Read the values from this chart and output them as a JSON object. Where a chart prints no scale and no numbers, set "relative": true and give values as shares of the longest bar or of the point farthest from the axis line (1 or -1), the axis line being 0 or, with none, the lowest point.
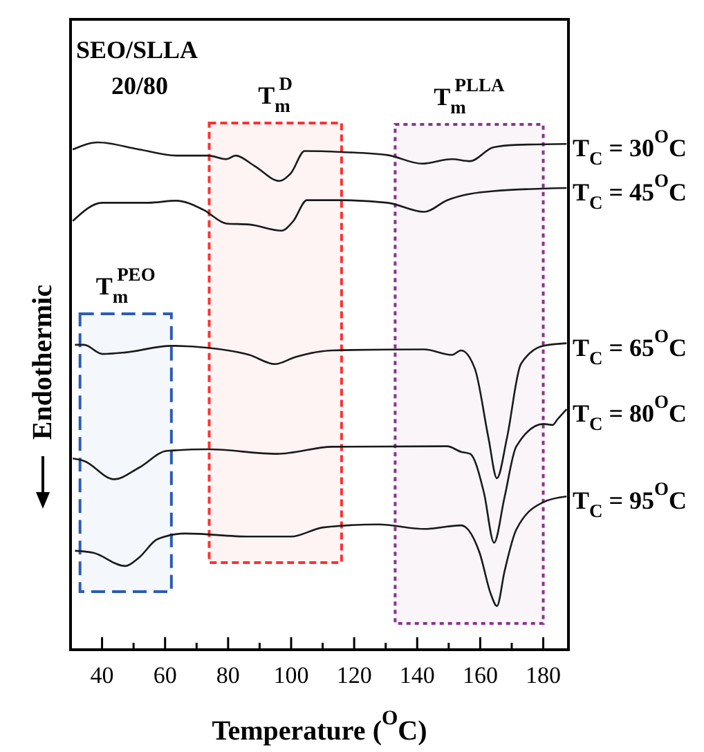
{
  "chart_data": {
    "type": "line",
    "relative": true,
    "xlabel": "Temperature ($^{O}$C)",
    "ylabel": "Endothermic",
    "xlim": [
      30,
      188
    ],
    "xticks": [
      40,
      {
        "value": 50,
        "label": null
      },
      60,
      {
        "value": 70,
        "label": null
      },
      80,
      {
        "value": 90,
        "label": null
      },
      100,
      {
        "value": 110,
        "label": null
      },
      120,
      {
        "value": 130,
        "label": null
      },
      140,
      {
        "value": 150,
        "label": null
      },
      160,
      {
        "value": 170,
        "label": null
      },
      180
    ],
    "tick_labels": "x",
    "grid": false,
    "marker": "none",
    "line_style": "solid",
    "annotations": [
      "SEO/SLLA",
      "20/80"
    ],
    "bands": [
      {
        "axis": "x",
        "from": 33,
        "to": 62,
        "label": "T$_{m}$$^{PEO}$",
        "color": "#2a5cb8"
      },
      {
        "axis": "x",
        "from": 74,
        "to": 116,
        "label": "T$_{m}$$^{D}$",
        "color": "#ff3030"
      },
      {
        "axis": "x",
        "from": 133,
        "to": 180,
        "label": "T$_{m}$$^{PLLA}$",
        "color": "#8e3290"
      }
    ],
    "series": [
      {
        "name": "T$_{C}$ = 30$^{O}$C",
        "color": "#1a1a1a",
        "x": [
          30.7,
          38.7,
          51.8,
          63.5,
          73.7,
          79.5,
          82.4,
          88.3,
          96.3,
          100,
          104.3,
          116,
          130.6,
          141.5,
          151,
          156.8,
          164.1,
          171.4,
          187.4
        ],
        "values": [
          0.986,
          1.0,
          0.986,
          0.974,
          0.974,
          0.967,
          0.974,
          0.954,
          0.924,
          0.94,
          0.983,
          0.981,
          0.975,
          0.958,
          0.967,
          0.963,
          0.99,
          0.995,
          0.997
        ]
      },
      {
        "name": "T$_{C}$ = 45$^{O}$C",
        "color": "#1a1a1a",
        "x": [
          30.7,
          40.1,
          54.7,
          63.5,
          72.2,
          79.5,
          86.8,
          97,
          100.7,
          105,
          116,
          130.6,
          142.2,
          149.5,
          164.1,
          187.4
        ],
        "values": [
          0.845,
          0.881,
          0.881,
          0.885,
          0.867,
          0.84,
          0.838,
          0.826,
          0.845,
          0.886,
          0.886,
          0.881,
          0.863,
          0.886,
          0.904,
          0.91
        ]
      },
      {
        "name": "T$_{C}$ = 65$^{O}$C",
        "color": "#1a1a1a",
        "x": [
          31.4,
          34.3,
          40.1,
          47.4,
          62,
          73.7,
          86.8,
          94.8,
          101.4,
          113.1,
          142.2,
          151,
          153.9,
          158.3,
          162.6,
          165.3,
          168.5,
          172.9,
          180.1,
          187.4
        ],
        "values": [
          0.601,
          0.601,
          0.583,
          0.586,
          0.599,
          0.595,
          0.581,
          0.563,
          0.577,
          0.59,
          0.592,
          0.581,
          0.59,
          0.554,
          0.418,
          0.338,
          0.418,
          0.563,
          0.599,
          0.604
        ]
      },
      {
        "name": "T$_{C}$ = 80$^{O}$C",
        "color": "#1a1a1a",
        "x": [
          30.7,
          34.3,
          43.8,
          51.8,
          60.6,
          73.7,
          95.6,
          113.1,
          149.5,
          153.9,
          156.8,
          161.2,
          164.4,
          167.7,
          171.4,
          180.1,
          183,
          184.5,
          187.4
        ],
        "values": [
          0.377,
          0.372,
          0.336,
          0.359,
          0.392,
          0.395,
          0.386,
          0.4,
          0.401,
          0.39,
          0.386,
          0.309,
          0.211,
          0.3,
          0.4,
          0.445,
          0.443,
          0.454,
          0.474
        ]
      },
      {
        "name": "T$_{C}$ = 95$^{O}$C",
        "color": "#1a1a1a",
        "x": [
          31.4,
          37.2,
          47.4,
          51.8,
          57.6,
          66.4,
          86.8,
          100,
          110.1,
          127.6,
          142.2,
          153.9,
          159.8,
          163.4,
          165.3,
          167.7,
          171.4,
          180.1,
          187.4
        ],
        "values": [
          0.195,
          0.191,
          0.165,
          0.182,
          0.218,
          0.229,
          0.223,
          0.223,
          0.241,
          0.247,
          0.238,
          0.245,
          0.191,
          0.109,
          0.086,
          0.154,
          0.236,
          0.291,
          0.302
        ]
      }
    ]
  }
}
